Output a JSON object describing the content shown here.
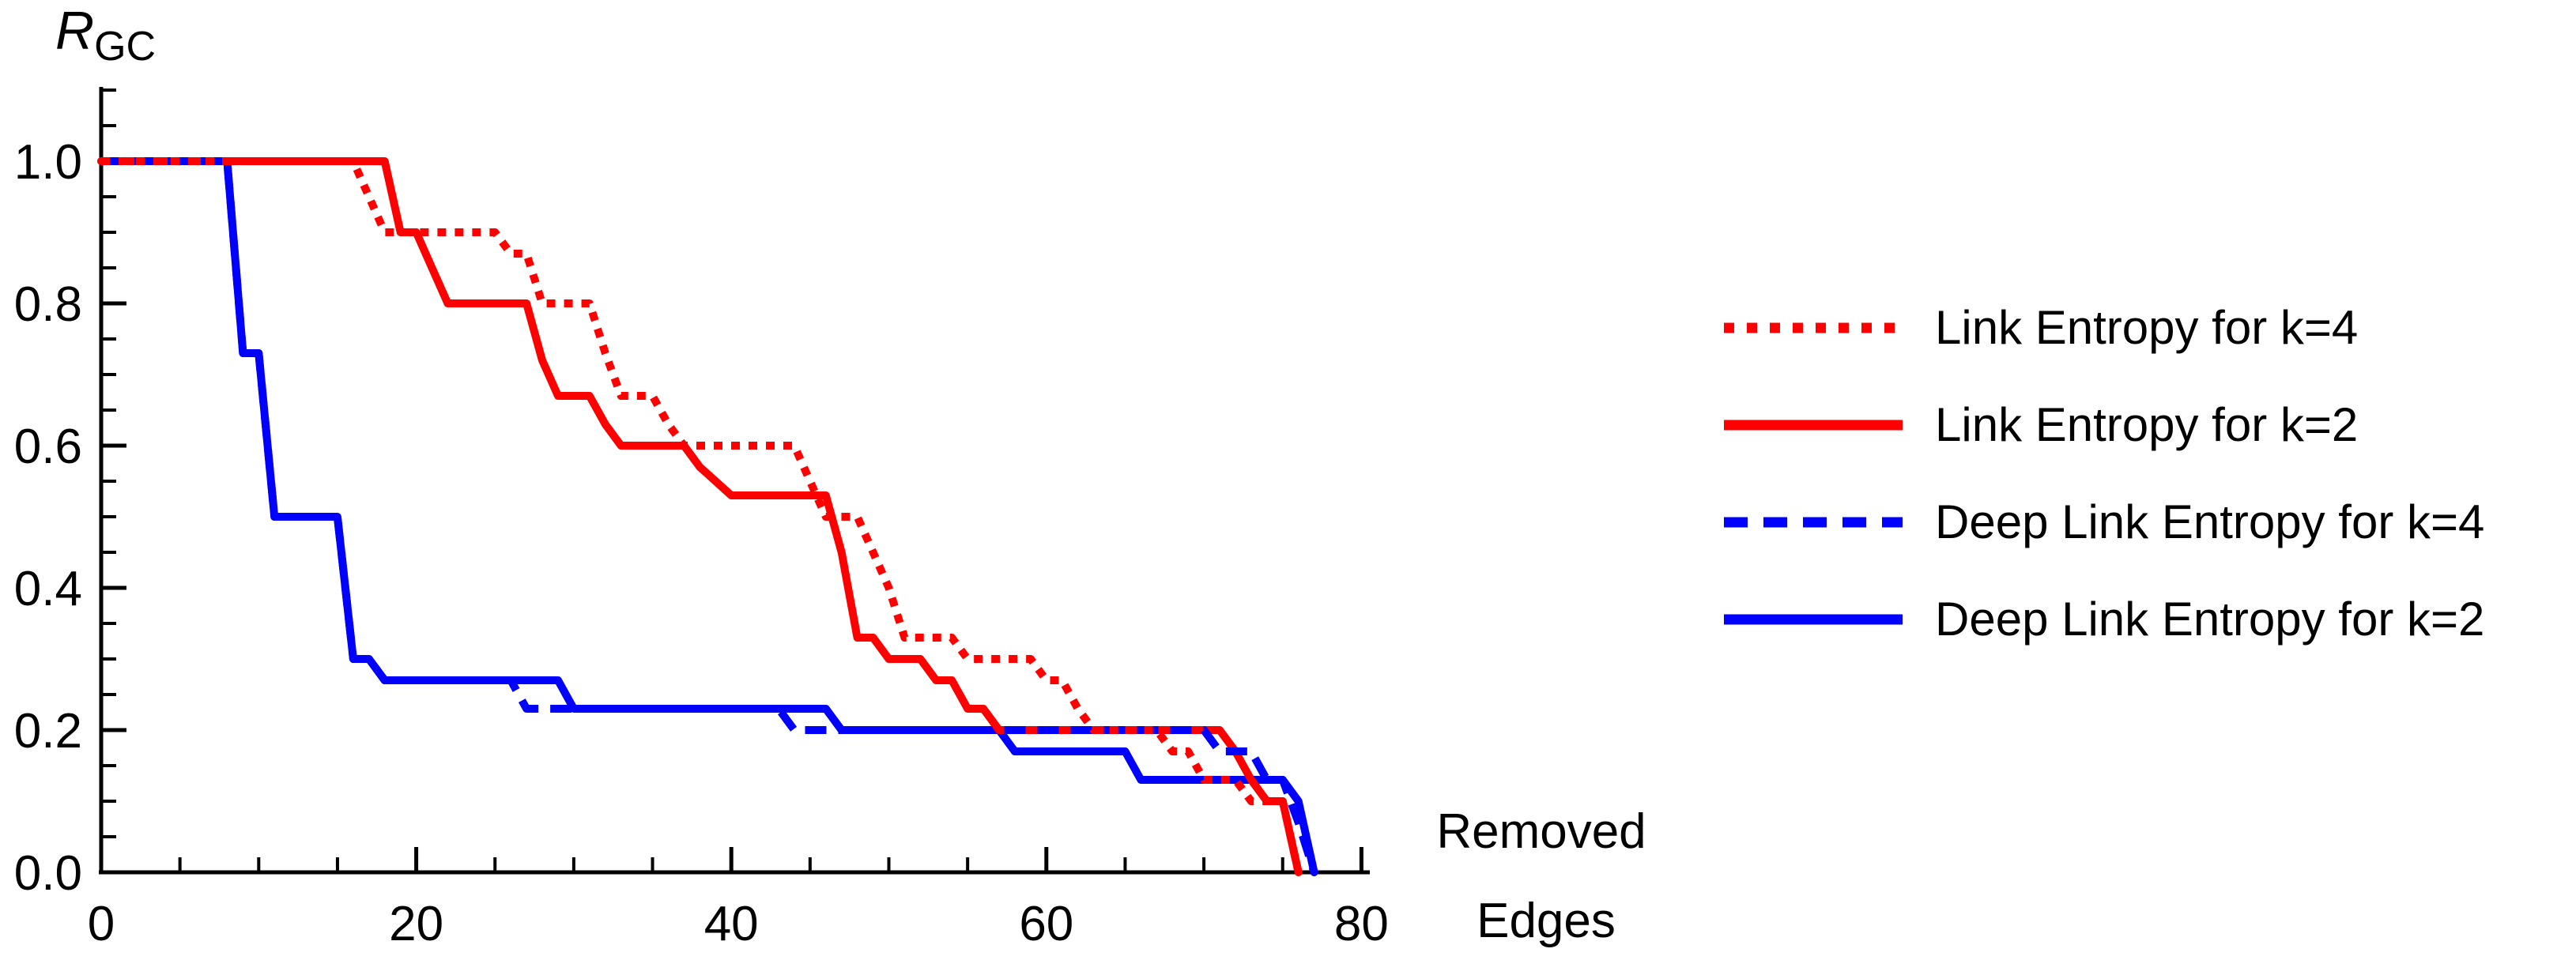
{
  "figure": {
    "background": "#ffffff",
    "axis_color": "#000000",
    "text_color": "#000000"
  },
  "chart_data": {
    "type": "line",
    "title": "",
    "ylabel": {
      "main": "R",
      "sub": "GC"
    },
    "xlabel_lines": [
      "Removed",
      "Edges"
    ],
    "xlim": [
      0,
      80
    ],
    "ylim": [
      0.0,
      1.0
    ],
    "xticks": [
      0,
      20,
      40,
      60,
      80
    ],
    "xtick_labels": [
      "0",
      "20",
      "40",
      "60",
      "80"
    ],
    "xtick_minor_step": 5,
    "ytick_values": [
      0.0,
      0.2,
      0.4,
      0.6,
      0.8,
      1.0
    ],
    "ytick_labels": [
      "0.0",
      "0.2",
      "0.4",
      "0.6",
      "0.8",
      "1.0"
    ],
    "ytick_minor_step": 0.05,
    "grid": false,
    "legend_position": "right-of-plot",
    "series": [
      {
        "name": "Link Entropy for k=4",
        "color": "#ff0000",
        "style": "dotted",
        "points": [
          [
            0,
            1
          ],
          [
            16,
            1
          ],
          [
            17,
            0.95
          ],
          [
            18,
            0.9
          ],
          [
            25,
            0.9
          ],
          [
            26,
            0.87
          ],
          [
            27,
            0.87
          ],
          [
            28,
            0.8
          ],
          [
            31,
            0.8
          ],
          [
            32,
            0.73
          ],
          [
            33,
            0.67
          ],
          [
            35,
            0.67
          ],
          [
            36,
            0.63
          ],
          [
            37,
            0.6
          ],
          [
            44,
            0.6
          ],
          [
            45,
            0.55
          ],
          [
            46,
            0.5
          ],
          [
            48,
            0.5
          ],
          [
            49,
            0.45
          ],
          [
            50,
            0.4
          ],
          [
            51,
            0.33
          ],
          [
            54,
            0.33
          ],
          [
            55,
            0.3
          ],
          [
            59,
            0.3
          ],
          [
            60,
            0.27
          ],
          [
            61,
            0.27
          ],
          [
            62,
            0.23
          ],
          [
            63,
            0.2
          ],
          [
            67,
            0.2
          ],
          [
            68,
            0.17
          ],
          [
            69,
            0.17
          ],
          [
            70,
            0.13
          ],
          [
            72,
            0.13
          ],
          [
            73,
            0.1
          ],
          [
            75,
            0.1
          ],
          [
            76,
            0
          ]
        ]
      },
      {
        "name": "Link Entropy for k=2",
        "color": "#ff0000",
        "style": "solid",
        "points": [
          [
            0,
            1
          ],
          [
            18,
            1
          ],
          [
            19,
            0.9
          ],
          [
            20,
            0.9
          ],
          [
            21,
            0.85
          ],
          [
            22,
            0.8
          ],
          [
            27,
            0.8
          ],
          [
            28,
            0.72
          ],
          [
            29,
            0.67
          ],
          [
            31,
            0.67
          ],
          [
            32,
            0.63
          ],
          [
            33,
            0.6
          ],
          [
            37,
            0.6
          ],
          [
            38,
            0.57
          ],
          [
            39,
            0.55
          ],
          [
            40,
            0.53
          ],
          [
            46,
            0.53
          ],
          [
            47,
            0.45
          ],
          [
            48,
            0.33
          ],
          [
            49,
            0.33
          ],
          [
            50,
            0.3
          ],
          [
            52,
            0.3
          ],
          [
            53,
            0.27
          ],
          [
            54,
            0.27
          ],
          [
            55,
            0.23
          ],
          [
            56,
            0.23
          ],
          [
            57,
            0.2
          ],
          [
            71,
            0.2
          ],
          [
            72,
            0.17
          ],
          [
            73,
            0.13
          ],
          [
            74,
            0.1
          ],
          [
            75,
            0.1
          ],
          [
            76,
            0
          ]
        ]
      },
      {
        "name": "Deep Link Entropy for k=4",
        "color": "#0000ff",
        "style": "dashed",
        "points": [
          [
            0,
            1
          ],
          [
            8,
            1
          ],
          [
            9,
            0.73
          ],
          [
            10,
            0.73
          ],
          [
            11,
            0.5
          ],
          [
            15,
            0.5
          ],
          [
            16,
            0.3
          ],
          [
            17,
            0.3
          ],
          [
            18,
            0.27
          ],
          [
            26,
            0.27
          ],
          [
            27,
            0.23
          ],
          [
            43,
            0.23
          ],
          [
            44,
            0.2
          ],
          [
            70,
            0.2
          ],
          [
            71,
            0.17
          ],
          [
            73,
            0.17
          ],
          [
            74,
            0.13
          ],
          [
            75,
            0.13
          ],
          [
            76,
            0.07
          ],
          [
            77,
            0
          ]
        ]
      },
      {
        "name": "Deep Link Entropy for k=2",
        "color": "#0000ff",
        "style": "solid",
        "points": [
          [
            0,
            1
          ],
          [
            8,
            1
          ],
          [
            9,
            0.73
          ],
          [
            10,
            0.73
          ],
          [
            11,
            0.5
          ],
          [
            15,
            0.5
          ],
          [
            16,
            0.3
          ],
          [
            17,
            0.3
          ],
          [
            18,
            0.27
          ],
          [
            29,
            0.27
          ],
          [
            30,
            0.23
          ],
          [
            46,
            0.23
          ],
          [
            47,
            0.2
          ],
          [
            57,
            0.2
          ],
          [
            58,
            0.17
          ],
          [
            65,
            0.17
          ],
          [
            66,
            0.13
          ],
          [
            75,
            0.13
          ],
          [
            76,
            0.1
          ],
          [
            77,
            0
          ]
        ]
      }
    ]
  }
}
